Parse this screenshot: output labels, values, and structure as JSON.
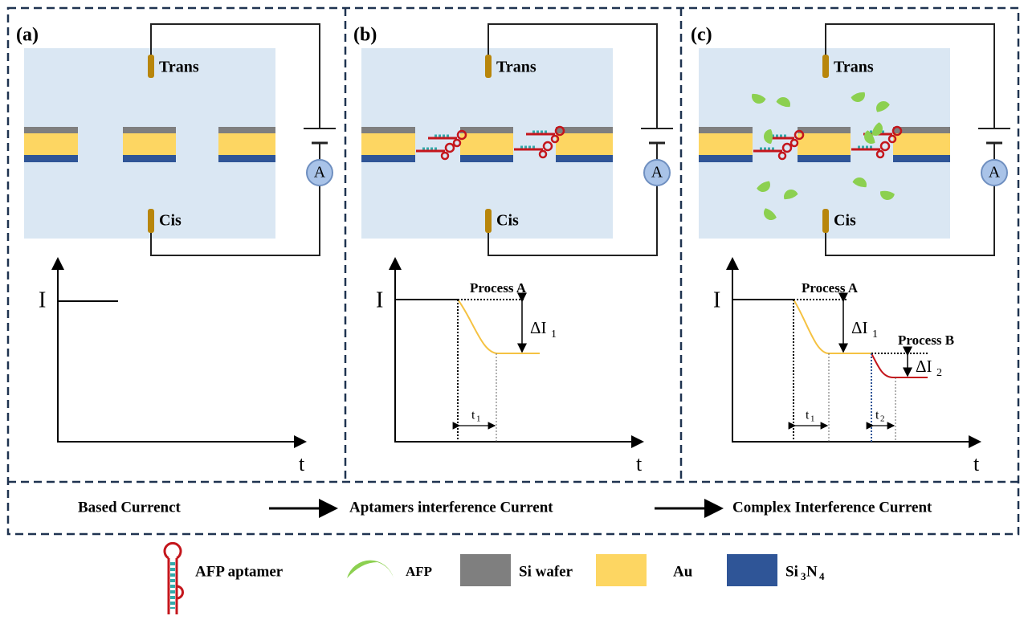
{
  "panels": [
    {
      "label": "(a)",
      "trans": "Trans",
      "cis": "Cis",
      "meter": "A",
      "y_axis": "I",
      "x_axis": "t"
    },
    {
      "label": "(b)",
      "trans": "Trans",
      "cis": "Cis",
      "meter": "A",
      "y_axis": "I",
      "x_axis": "t",
      "processes": [
        {
          "name": "Process A",
          "delta": "ΔI",
          "delta_sub": "1",
          "time": "t",
          "time_sub": "1"
        }
      ]
    },
    {
      "label": "(c)",
      "trans": "Trans",
      "cis": "Cis",
      "meter": "A",
      "y_axis": "I",
      "x_axis": "t",
      "processes": [
        {
          "name": "Process A",
          "delta": "ΔI",
          "delta_sub": "1",
          "time": "t",
          "time_sub": "1"
        },
        {
          "name": "Process B",
          "delta": "ΔI",
          "delta_sub": "2",
          "time": "t",
          "time_sub": "2"
        }
      ]
    }
  ],
  "flow": [
    "Based Currenct",
    "Aptamers interference Current",
    "Complex Interference Current"
  ],
  "legend": [
    {
      "label": "AFP aptamer"
    },
    {
      "label": "AFP"
    },
    {
      "label": "Si wafer"
    },
    {
      "label": "Au"
    },
    {
      "label_parts": [
        "Si",
        "3",
        "N",
        "4"
      ]
    }
  ]
}
